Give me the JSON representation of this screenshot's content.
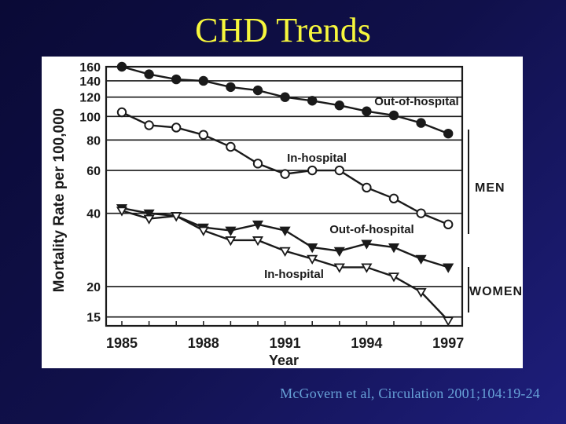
{
  "slide": {
    "title": "CHD Trends",
    "citation": "McGovern et al, Circulation 2001;104:19-24"
  },
  "colors": {
    "background_top": "#0a0a36",
    "background_bottom": "#1e1e7c",
    "title_text": "#f7f73c",
    "citation_text": "#67a1d7",
    "chart_panel": "#ffffff",
    "chart_ink": "#1a1a1a"
  },
  "chart_data": {
    "type": "line",
    "title": "",
    "xlabel": "Year",
    "ylabel": "Mortality Rate per 100,000",
    "x_scale": "linear",
    "y_scale": "log",
    "grid": "horizontal",
    "x": [
      1985,
      1986,
      1987,
      1988,
      1989,
      1990,
      1991,
      1992,
      1993,
      1994,
      1995,
      1996,
      1997
    ],
    "x_tick_years": [
      1985,
      1988,
      1991,
      1994,
      1997
    ],
    "x_tick_labels": [
      "1985",
      "1988",
      "1991",
      "1994",
      "1997"
    ],
    "y_ticks": [
      160,
      140,
      120,
      100,
      80,
      60,
      40,
      20,
      15
    ],
    "ylim": [
      14,
      160
    ],
    "series": [
      {
        "name": "men-out-of-hospital",
        "group": "MEN",
        "annotation": "Out-of-hospital",
        "marker": "filled-circle",
        "values": [
          160,
          149,
          142,
          140,
          132,
          128,
          120,
          116,
          111,
          105,
          101,
          94,
          85
        ]
      },
      {
        "name": "men-in-hospital",
        "group": "MEN",
        "annotation": "In-hospital",
        "marker": "open-circle",
        "values": [
          104,
          92,
          90,
          84,
          75,
          64,
          58,
          60,
          60,
          51,
          46,
          40,
          36
        ]
      },
      {
        "name": "women-out-of-hospital",
        "group": "WOMEN",
        "annotation": "Out-of-hospital",
        "marker": "filled-triangle",
        "values": [
          42,
          40,
          39,
          35,
          34,
          36,
          34,
          29,
          28,
          30,
          29,
          26,
          24
        ]
      },
      {
        "name": "women-in-hospital",
        "group": "WOMEN",
        "annotation": "In-hospital",
        "marker": "open-triangle",
        "values": [
          41,
          38,
          39,
          34,
          31,
          31,
          28,
          26,
          24,
          24,
          22,
          19,
          14.5
        ]
      }
    ],
    "groups": [
      {
        "label": "MEN"
      },
      {
        "label": "WOMEN"
      }
    ]
  }
}
